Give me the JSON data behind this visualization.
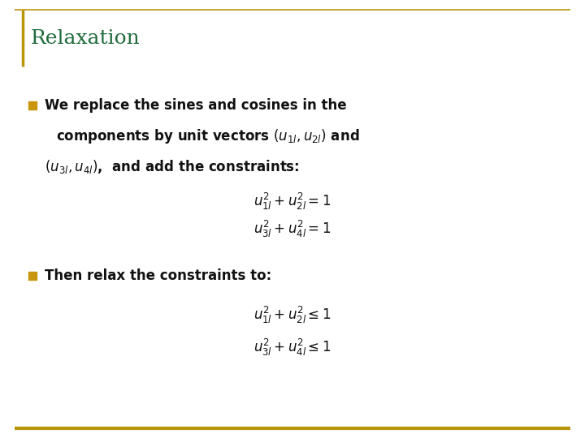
{
  "title": "Relaxation",
  "title_color": "#1F6B3A",
  "title_fontsize": 18,
  "background_color": "#FFFFFF",
  "border_color": "#B8960C",
  "bullet_square_color": "#C8960C",
  "text_color": "#111111",
  "bullet1_line1": "We replace the sines and cosines in the",
  "bullet1_line2": "components by unit vectors $(u_{1l}, u_{2l})$ and",
  "bullet1_line3": "$(u_{3l}, u_{4l})$,  and add the constraints:",
  "eq1a": "$u^2_{1l} + u^2_{2l} = 1$",
  "eq1b": "$u^2_{3l} + u^2_{4l} = 1$",
  "bullet2_line1": "Then relax the constraints to:",
  "eq2a": "$u^2_{1l} + u^2_{2l} \\leq 1$",
  "eq2b": "$u^2_{3l} + u^2_{4l} \\leq 1$",
  "text_fontsize": 12,
  "eq_fontsize": 12
}
